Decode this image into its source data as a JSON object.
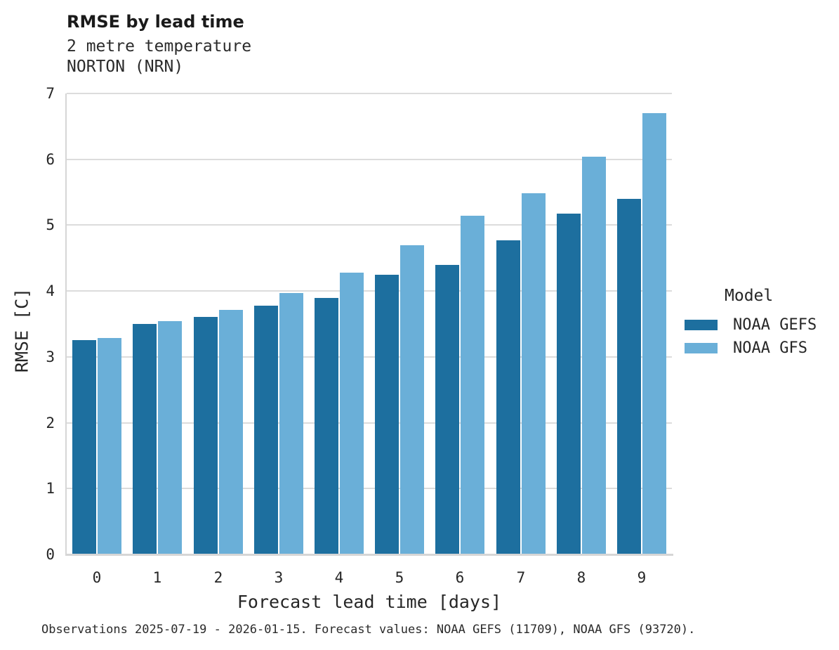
{
  "header": {
    "title": "RMSE by lead time",
    "subtitle": {
      "line1": "2 metre temperature",
      "line2": "NORTON (NRN)"
    }
  },
  "caption": "Observations 2025-07-19 - 2026-01-15. Forecast values: NOAA GEFS (11709), NOAA GFS (93720).",
  "colors": {
    "gefs_bar": "#1d6f9f",
    "gfs_bar": "#6aafd8",
    "gridline": "#dcdcdc",
    "axis_line": "#d6d6d6",
    "text": "#262626"
  },
  "legend": {
    "title": "Model"
  },
  "chart_data": {
    "type": "bar",
    "title": "RMSE by lead time",
    "subtitle": [
      "2 metre temperature",
      "NORTON (NRN)"
    ],
    "xlabel": "Forecast lead time [days]",
    "ylabel": "RMSE [C]",
    "categories": [
      0,
      1,
      2,
      3,
      4,
      5,
      6,
      7,
      8,
      9
    ],
    "series": [
      {
        "name": "NOAA GEFS",
        "color": "#1d6f9f",
        "values": [
          3.25,
          3.5,
          3.61,
          3.78,
          3.9,
          4.25,
          4.4,
          4.77,
          5.17,
          5.4
        ]
      },
      {
        "name": "NOAA GFS",
        "color": "#6aafd8",
        "values": [
          3.29,
          3.54,
          3.71,
          3.97,
          4.28,
          4.7,
          5.14,
          5.49,
          6.04,
          6.7
        ]
      }
    ],
    "ylim": [
      0,
      7
    ],
    "yticks": [
      0,
      1,
      2,
      3,
      4,
      5,
      6,
      7
    ],
    "grid": true,
    "legend_position": "right",
    "legend_title": "Model"
  }
}
